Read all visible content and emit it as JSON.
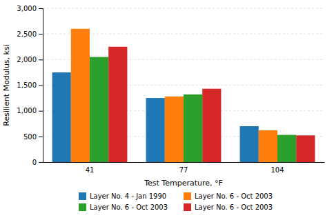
{
  "chart_data": {
    "type": "bar",
    "xlabel": "Test Temperature, °F",
    "ylabel": "Resilient Modulus, ksi",
    "categories": [
      "41",
      "77",
      "104"
    ],
    "series": [
      {
        "name": "Layer No. 4 - Jan 1990",
        "values": [
          1750,
          1250,
          700
        ]
      },
      {
        "name": "Layer No. 6 - Oct 2003",
        "values": [
          2600,
          1280,
          620
        ]
      },
      {
        "name": "Layer No. 6 - Oct 2003",
        "values": [
          2050,
          1320,
          530
        ]
      },
      {
        "name": "Layer No. 6 - Oct 2003",
        "values": [
          2250,
          1430,
          520
        ]
      }
    ],
    "ylim": [
      0,
      3000
    ],
    "yticks": [
      0,
      500,
      {
        "value": 1000,
        "label": "1,000"
      },
      {
        "value": 1500,
        "label": "1,500"
      },
      {
        "value": 2000,
        "label": "2,000"
      },
      {
        "value": 2500,
        "label": "2,500"
      },
      {
        "value": 3000,
        "label": "3,000"
      }
    ],
    "grid": true,
    "legend": "bottom"
  }
}
